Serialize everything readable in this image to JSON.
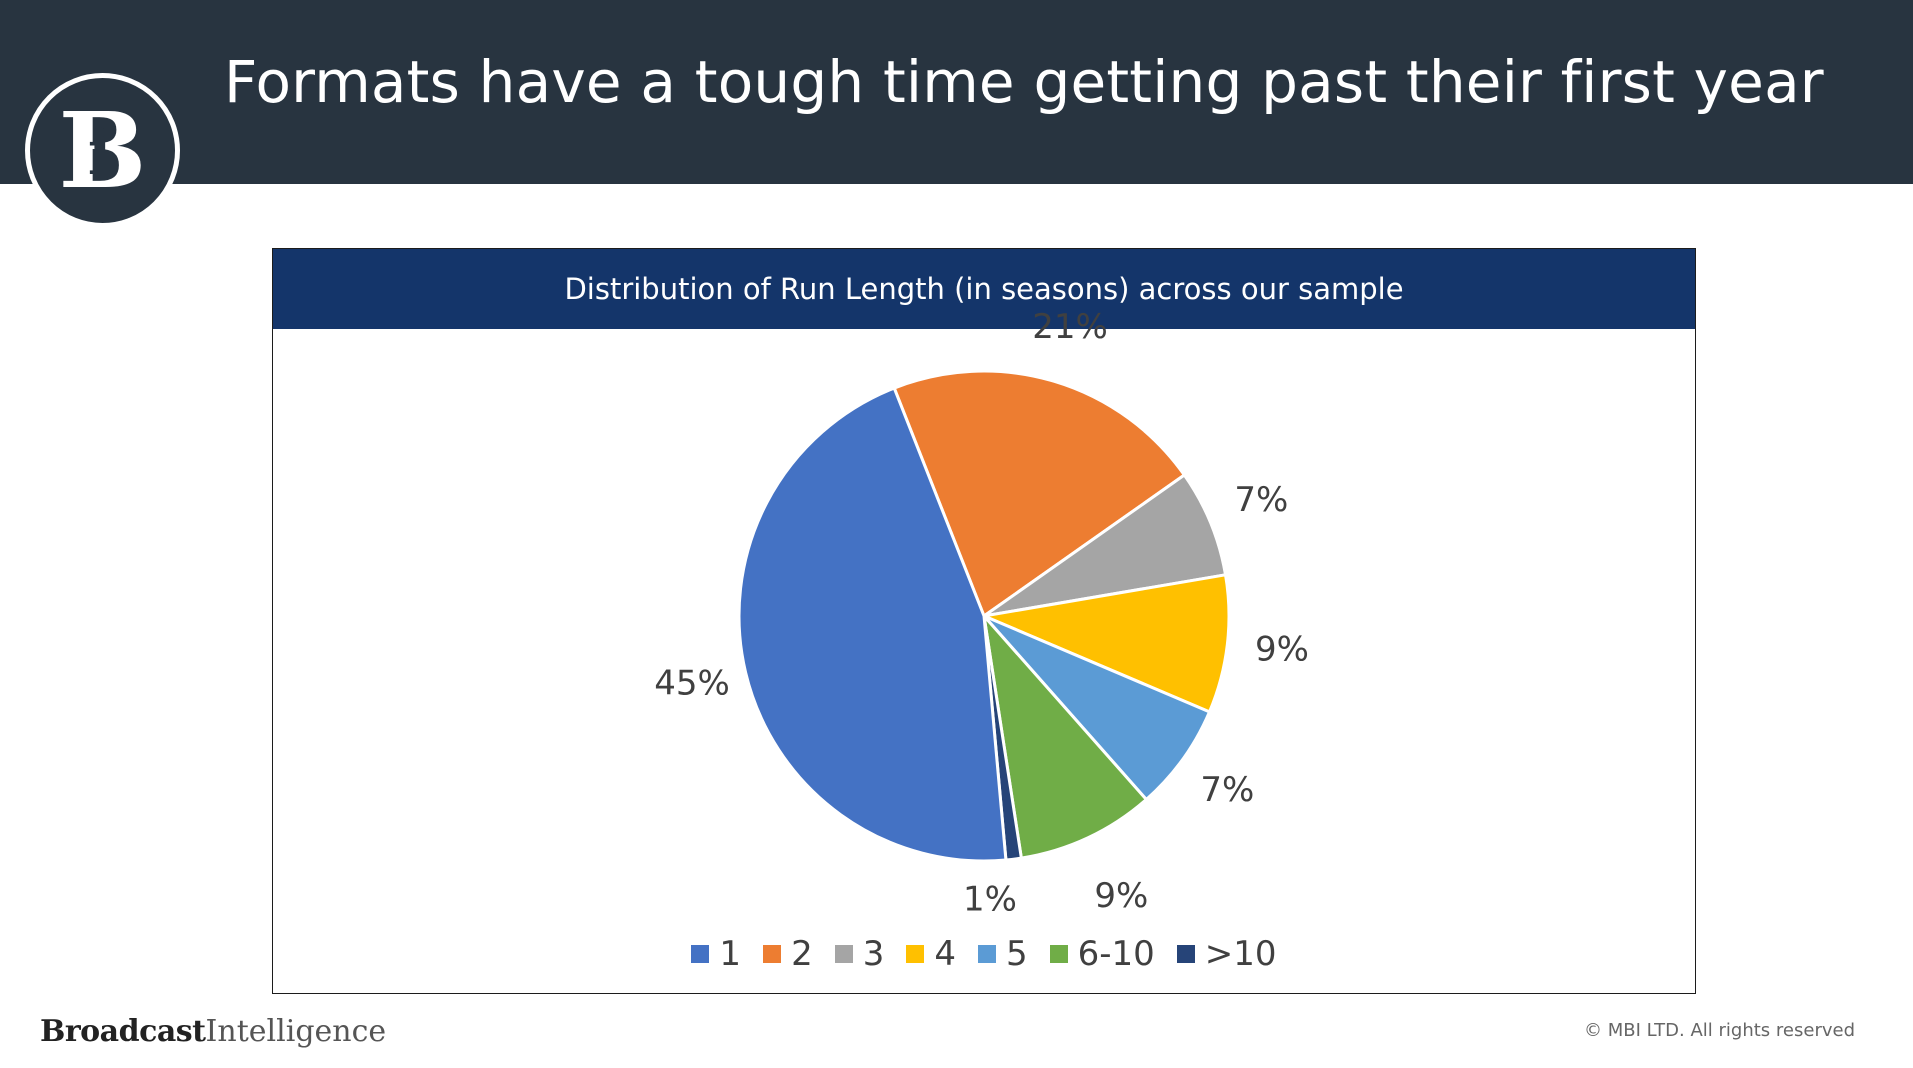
{
  "slide": {
    "title": "Formats have a tough time getting past their first year",
    "logo_icon": "bi-logo-icon",
    "logo_text": "i"
  },
  "footer": {
    "brand_bold": "Broadcast",
    "brand_light": "Intelligence",
    "copyright": "© MBI LTD. All rights reserved"
  },
  "chart_data": {
    "type": "pie",
    "title": "Distribution of Run Length (in seasons) across our sample",
    "categories": [
      "1",
      "2",
      "3",
      "4",
      "5",
      "6-10",
      ">10"
    ],
    "values": [
      45,
      21,
      7,
      9,
      7,
      9,
      1
    ],
    "data_labels": [
      "45%",
      "21%",
      "7%",
      "9%",
      "7%",
      "9%",
      "1%"
    ],
    "colors": [
      "#4472C4",
      "#ED7D31",
      "#A5A5A5",
      "#FFC000",
      "#5B9BD5",
      "#70AD47",
      "#264478"
    ],
    "slice_order": "counterclockwise from 1 o'clock position: 2, 3, 4, 5, 6-10, >10, then 1",
    "legend_position": "bottom"
  }
}
